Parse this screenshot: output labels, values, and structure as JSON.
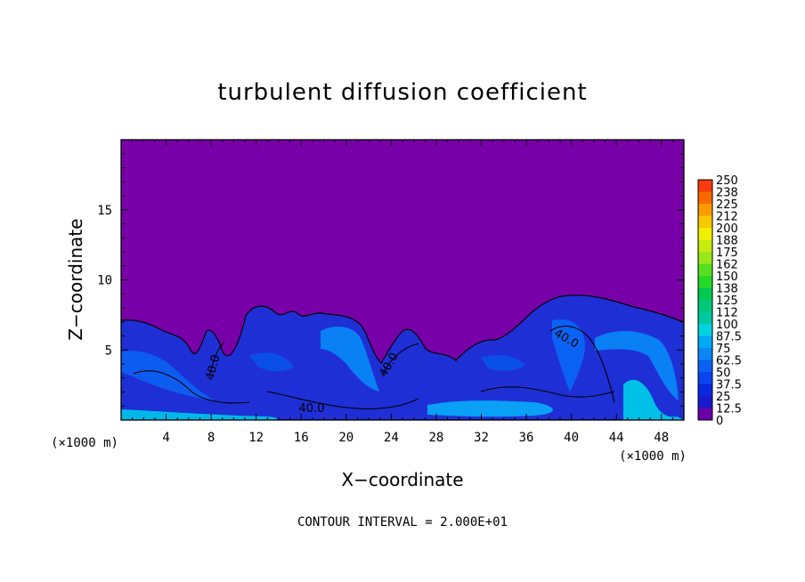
{
  "chart_data": {
    "type": "heatmap",
    "title": "turbulent diffusion coefficient",
    "xlabel": "X−coordinate",
    "ylabel": "Z−coordinate",
    "x_unit": "(×1000 m)",
    "xlim": [
      0,
      50
    ],
    "ylim": [
      0,
      20
    ],
    "x_ticks": [
      "4",
      "8",
      "12",
      "16",
      "20",
      "24",
      "28",
      "32",
      "36",
      "40",
      "44",
      "48"
    ],
    "y_ticks": [
      "5",
      "10",
      "15"
    ],
    "colorbar_labels": [
      "0",
      "12.5",
      "25",
      "37.5",
      "50",
      "62.5",
      "75",
      "87.5",
      "100",
      "112",
      "125",
      "138",
      "150",
      "162",
      "175",
      "188",
      "200",
      "212",
      "225",
      "238",
      "250"
    ],
    "colorbar_colors": [
      "#6a00a8",
      "#1a1acc",
      "#0a28e0",
      "#0a44f0",
      "#0a62f5",
      "#0a86f5",
      "#00aaf5",
      "#00d2e0",
      "#00c8a0",
      "#00c878",
      "#00c850",
      "#28d828",
      "#58e020",
      "#98e81c",
      "#c8ec10",
      "#f0f000",
      "#f8c800",
      "#f89a00",
      "#f86a00",
      "#f83a10",
      "#f87070"
    ],
    "contour_labels": [
      "40.0",
      "40.0",
      "40.0",
      "40.0"
    ],
    "contour_interval": "CONTOUR INTERVAL = 2.000E+01",
    "grid": false
  }
}
